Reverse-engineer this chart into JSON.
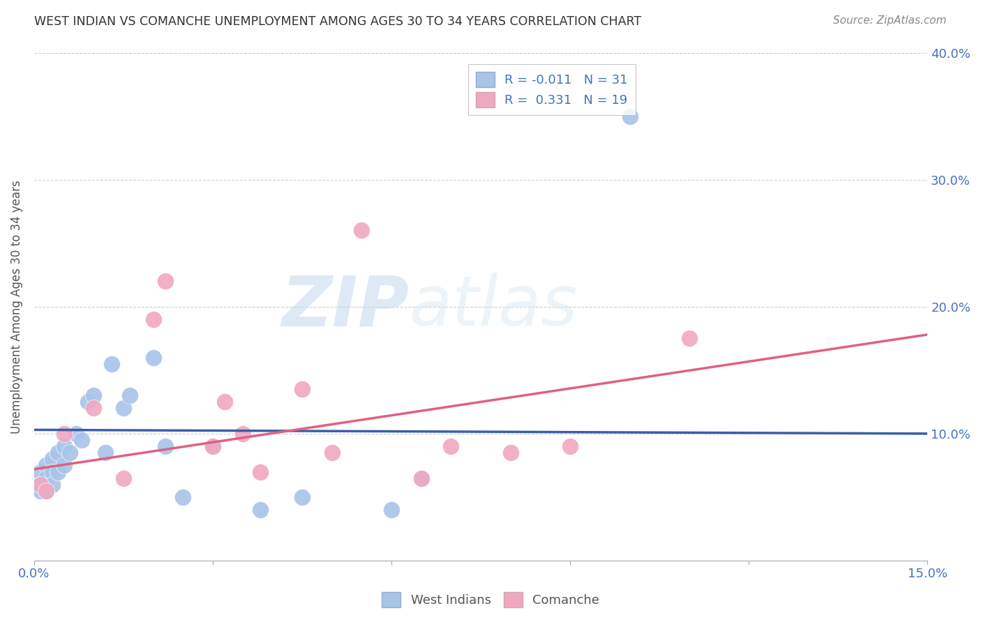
{
  "title": "WEST INDIAN VS COMANCHE UNEMPLOYMENT AMONG AGES 30 TO 34 YEARS CORRELATION CHART",
  "source": "Source: ZipAtlas.com",
  "ylabel": "Unemployment Among Ages 30 to 34 years",
  "xlim": [
    0.0,
    0.15
  ],
  "ylim": [
    0.0,
    0.4
  ],
  "xticks": [
    0.0,
    0.03,
    0.06,
    0.09,
    0.12,
    0.15
  ],
  "yticks": [
    0.0,
    0.1,
    0.2,
    0.3,
    0.4
  ],
  "xtick_labels": [
    "0.0%",
    "",
    "",
    "",
    "",
    "15.0%"
  ],
  "ytick_labels": [
    "",
    "10.0%",
    "20.0%",
    "30.0%",
    "40.0%"
  ],
  "west_indian_R": "-0.011",
  "west_indian_N": "31",
  "comanche_R": "0.331",
  "comanche_N": "19",
  "west_indian_color": "#a8c4e8",
  "comanche_color": "#f0a8c0",
  "west_indian_line_color": "#3a5fa8",
  "comanche_line_color": "#e06080",
  "background_color": "#ffffff",
  "west_indian_x": [
    0.001,
    0.001,
    0.001,
    0.002,
    0.002,
    0.002,
    0.003,
    0.003,
    0.003,
    0.004,
    0.004,
    0.005,
    0.005,
    0.006,
    0.007,
    0.008,
    0.009,
    0.01,
    0.012,
    0.013,
    0.015,
    0.016,
    0.02,
    0.022,
    0.025,
    0.03,
    0.038,
    0.045,
    0.06,
    0.065,
    0.1
  ],
  "west_indian_y": [
    0.07,
    0.06,
    0.055,
    0.075,
    0.065,
    0.055,
    0.08,
    0.07,
    0.06,
    0.085,
    0.07,
    0.09,
    0.075,
    0.085,
    0.1,
    0.095,
    0.125,
    0.13,
    0.085,
    0.155,
    0.12,
    0.13,
    0.16,
    0.09,
    0.05,
    0.09,
    0.04,
    0.05,
    0.04,
    0.065,
    0.35
  ],
  "comanche_x": [
    0.001,
    0.002,
    0.005,
    0.01,
    0.015,
    0.02,
    0.022,
    0.03,
    0.032,
    0.035,
    0.038,
    0.045,
    0.05,
    0.055,
    0.065,
    0.07,
    0.08,
    0.09,
    0.11
  ],
  "comanche_y": [
    0.06,
    0.055,
    0.1,
    0.12,
    0.065,
    0.19,
    0.22,
    0.09,
    0.125,
    0.1,
    0.07,
    0.135,
    0.085,
    0.26,
    0.065,
    0.09,
    0.085,
    0.09,
    0.175
  ],
  "wi_line_x": [
    0.0,
    0.15
  ],
  "wi_line_y": [
    0.103,
    0.1
  ],
  "co_line_x": [
    0.0,
    0.15
  ],
  "co_line_y": [
    0.072,
    0.178
  ]
}
